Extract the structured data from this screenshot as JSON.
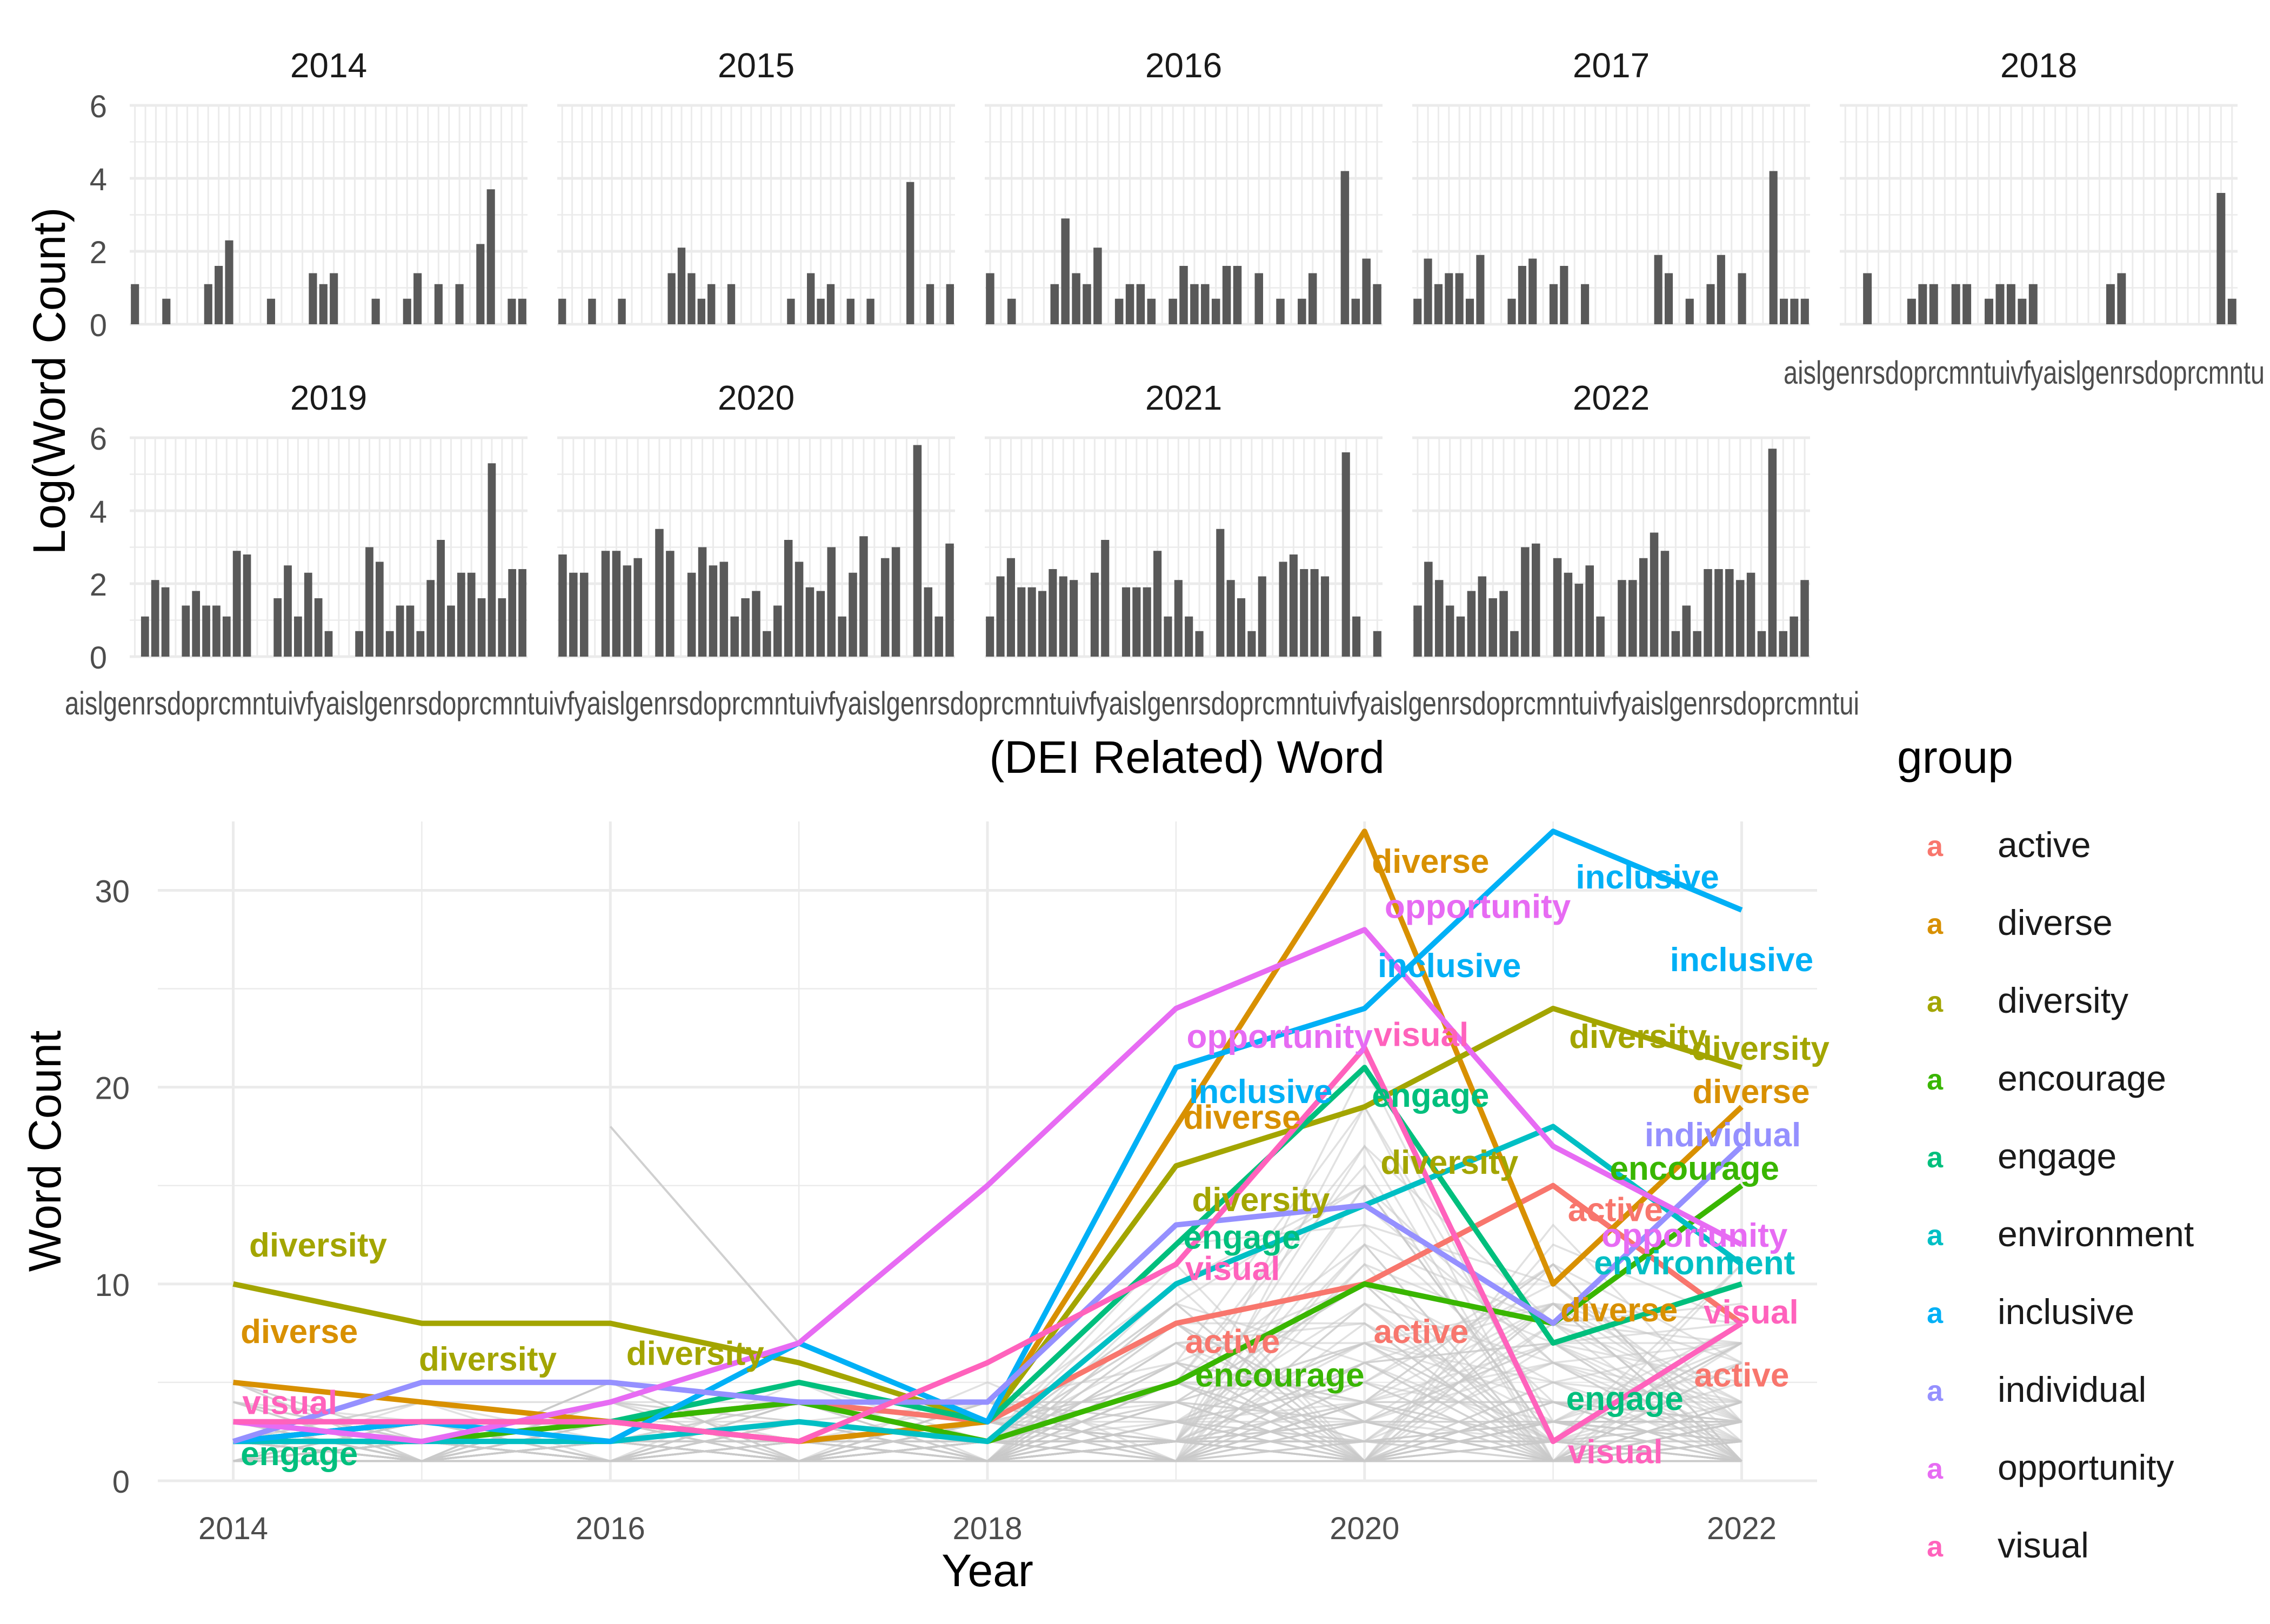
{
  "colors": {
    "background": "#ffffff",
    "panel_grid": "#ebebeb",
    "bar": "#595959",
    "axis_text": "#4d4d4d",
    "title_text": "#000000",
    "other_words_line": "#c8c8c8"
  },
  "chart_data": [
    {
      "type": "bar",
      "facet_by": "year",
      "facets": [
        {
          "year": "2014",
          "values": [
            1.1,
            0,
            0,
            0.7,
            0,
            0,
            0,
            1.1,
            1.6,
            2.3,
            0,
            0,
            0,
            0.7,
            0,
            0,
            0,
            1.4,
            1.1,
            1.4,
            0,
            0,
            0,
            0.7,
            0,
            0,
            0.7,
            1.4,
            0,
            1.1,
            0,
            1.1,
            0,
            2.2,
            3.7,
            0,
            0.7,
            0.7
          ]
        },
        {
          "year": "2015",
          "values": [
            0.7,
            0,
            0,
            0.7,
            0,
            0,
            0.7,
            0,
            0,
            0,
            0,
            1.4,
            2.1,
            1.4,
            0.7,
            1.1,
            0,
            1.1,
            0,
            0,
            0,
            0,
            0,
            0.7,
            0,
            1.4,
            0.7,
            1.1,
            0,
            0.7,
            0,
            0.7,
            0,
            0,
            0,
            3.9,
            0,
            1.1,
            0,
            1.1
          ]
        },
        {
          "year": "2016",
          "values": [
            1.4,
            0,
            0.7,
            0,
            0,
            0,
            1.1,
            2.9,
            1.4,
            1.1,
            2.1,
            0,
            0.7,
            1.1,
            1.1,
            0.7,
            0,
            0.7,
            1.6,
            1.1,
            1.1,
            0.7,
            1.6,
            1.6,
            0,
            1.4,
            0,
            0.7,
            0,
            0.7,
            1.4,
            0,
            0,
            4.2,
            0.7,
            1.8,
            1.1
          ]
        },
        {
          "year": "2017",
          "values": [
            0.7,
            1.8,
            1.1,
            1.4,
            1.4,
            0.7,
            1.9,
            0,
            0,
            0.7,
            1.6,
            1.8,
            0,
            1.1,
            1.6,
            0,
            1.1,
            0,
            0,
            0,
            0,
            0,
            0,
            1.9,
            1.4,
            0,
            0.7,
            0,
            1.1,
            1.9,
            0,
            1.4,
            0,
            0,
            4.2,
            0.7,
            0.7,
            0.7
          ]
        },
        {
          "year": "2018",
          "values": [
            0,
            0,
            1.4,
            0,
            0,
            0,
            0.7,
            1.1,
            1.1,
            0,
            1.1,
            1.1,
            0,
            0.7,
            1.1,
            1.1,
            0.7,
            1.1,
            0,
            0,
            0,
            0,
            0,
            0,
            1.1,
            1.4,
            0,
            0,
            0,
            0,
            0,
            0,
            0,
            0,
            3.6,
            0.7
          ]
        },
        {
          "year": "2019",
          "values": [
            0,
            1.1,
            2.1,
            1.9,
            0,
            1.4,
            1.8,
            1.4,
            1.4,
            1.1,
            2.9,
            2.8,
            0,
            0,
            1.6,
            2.5,
            1.1,
            2.3,
            1.6,
            0.7,
            0,
            0,
            0.7,
            3.0,
            2.6,
            0.7,
            1.4,
            1.4,
            0.7,
            2.1,
            3.2,
            1.4,
            2.3,
            2.3,
            1.6,
            5.3,
            1.6,
            2.4,
            2.4
          ]
        },
        {
          "year": "2020",
          "values": [
            2.8,
            2.3,
            2.3,
            0,
            2.9,
            2.9,
            2.5,
            2.7,
            0,
            3.5,
            2.9,
            0,
            2.3,
            3.0,
            2.5,
            2.6,
            1.1,
            1.6,
            1.8,
            0.7,
            1.4,
            3.2,
            2.6,
            1.9,
            1.8,
            3.0,
            1.1,
            2.3,
            3.3,
            0,
            2.7,
            3.0,
            0,
            5.8,
            1.9,
            1.1,
            3.1
          ]
        },
        {
          "year": "2021",
          "values": [
            1.1,
            2.2,
            2.7,
            1.9,
            1.9,
            1.8,
            2.4,
            2.2,
            2.1,
            0,
            2.3,
            3.2,
            0,
            1.9,
            1.9,
            1.9,
            2.9,
            1.1,
            2.1,
            1.1,
            0.7,
            0,
            3.5,
            2.1,
            1.6,
            0.7,
            2.2,
            0,
            2.6,
            2.8,
            2.4,
            2.4,
            2.2,
            0,
            5.6,
            1.1,
            0,
            0.7
          ]
        },
        {
          "year": "2022",
          "values": [
            1.4,
            2.6,
            2.1,
            1.4,
            1.1,
            1.8,
            2.2,
            1.6,
            1.8,
            0.7,
            3.0,
            3.1,
            0,
            2.7,
            2.3,
            2.0,
            2.5,
            1.1,
            0,
            2.1,
            2.1,
            2.7,
            3.4,
            2.9,
            0.7,
            1.4,
            0.7,
            2.4,
            2.4,
            2.4,
            2.1,
            2.3,
            0.7,
            5.7,
            0.7,
            1.1,
            2.1
          ]
        }
      ],
      "xlabel": "(DEI Related) Word",
      "ylabel": "Log(Word Count)",
      "ylim": [
        0,
        6
      ],
      "y_ticks": [
        "0",
        "2",
        "4",
        "6"
      ],
      "grid": true
    },
    {
      "type": "line",
      "x": [
        2014,
        2015,
        2016,
        2017,
        2018,
        2019,
        2020,
        2021,
        2022
      ],
      "x_ticks": [
        "2014",
        "2016",
        "2018",
        "2020",
        "2022"
      ],
      "y_ticks": [
        "0",
        "10",
        "20",
        "30"
      ],
      "ylim": [
        0,
        33.5
      ],
      "xlabel": "Year",
      "ylabel": "Word Count",
      "legend_title": "group",
      "legend_position": "right",
      "legend_key": "a",
      "series": [
        {
          "name": "active",
          "color": "#F8766D",
          "values": [
            2,
            3,
            3,
            4,
            3,
            8,
            10,
            15,
            8
          ]
        },
        {
          "name": "diverse",
          "color": "#D89000",
          "values": [
            5,
            4,
            3,
            2,
            3,
            18,
            33,
            10,
            19
          ]
        },
        {
          "name": "diversity",
          "color": "#A3A500",
          "values": [
            10,
            8,
            8,
            6,
            3,
            16,
            19,
            24,
            21
          ]
        },
        {
          "name": "encourage",
          "color": "#39B600",
          "values": [
            2,
            2,
            3,
            4,
            2,
            5,
            10,
            8,
            15
          ]
        },
        {
          "name": "engage",
          "color": "#00BF7D",
          "values": [
            2,
            3,
            3,
            5,
            3,
            12,
            21,
            7,
            10
          ]
        },
        {
          "name": "environment",
          "color": "#00BFC4",
          "values": [
            2,
            2,
            2,
            3,
            2,
            10,
            14,
            18,
            11
          ]
        },
        {
          "name": "inclusive",
          "color": "#00B0F6",
          "values": [
            2,
            3,
            2,
            7,
            3,
            21,
            24,
            33,
            29
          ]
        },
        {
          "name": "individual",
          "color": "#9590FF",
          "values": [
            2,
            5,
            5,
            4,
            4,
            13,
            14,
            8,
            17
          ]
        },
        {
          "name": "opportunity",
          "color": "#E76BF3",
          "values": [
            3,
            2,
            4,
            7,
            15,
            24,
            28,
            17,
            12
          ]
        },
        {
          "name": "visual",
          "color": "#FF62BC",
          "values": [
            3,
            3,
            3,
            2,
            6,
            11,
            22,
            2,
            8
          ]
        }
      ],
      "labels": [
        {
          "text": "diversity",
          "series": "diversity",
          "x": 2014.45,
          "y": 12
        },
        {
          "text": "diverse",
          "series": "diverse",
          "x": 2014.35,
          "y": 7.6
        },
        {
          "text": "visual",
          "series": "visual",
          "x": 2014.3,
          "y": 4.0
        },
        {
          "text": "engage",
          "series": "engage",
          "x": 2014.35,
          "y": 1.4
        },
        {
          "text": "diversity",
          "series": "diversity",
          "x": 2015.35,
          "y": 6.2
        },
        {
          "text": "diversity",
          "series": "diversity",
          "x": 2016.45,
          "y": 6.5
        },
        {
          "text": "diverse",
          "series": "diverse",
          "x": 2020.35,
          "y": 31.5
        },
        {
          "text": "opportunity",
          "series": "opportunity",
          "x": 2020.6,
          "y": 29.2
        },
        {
          "text": "inclusive",
          "series": "inclusive",
          "x": 2020.45,
          "y": 26.2
        },
        {
          "text": "visual",
          "series": "visual",
          "x": 2020.3,
          "y": 22.7
        },
        {
          "text": "engage",
          "series": "engage",
          "x": 2020.35,
          "y": 19.6
        },
        {
          "text": "diversity",
          "series": "diversity",
          "x": 2020.45,
          "y": 16.2
        },
        {
          "text": "opportunity",
          "series": "opportunity",
          "x": 2019.55,
          "y": 22.6
        },
        {
          "text": "inclusive",
          "series": "inclusive",
          "x": 2019.45,
          "y": 19.8
        },
        {
          "text": "diverse",
          "series": "diverse",
          "x": 2019.35,
          "y": 18.5
        },
        {
          "text": "diversity",
          "series": "diversity",
          "x": 2019.45,
          "y": 14.3
        },
        {
          "text": "engage",
          "series": "engage",
          "x": 2019.35,
          "y": 12.4
        },
        {
          "text": "visual",
          "series": "visual",
          "x": 2019.3,
          "y": 10.8
        },
        {
          "text": "active",
          "series": "active",
          "x": 2019.3,
          "y": 7.1
        },
        {
          "text": "encourage",
          "series": "encourage",
          "x": 2019.55,
          "y": 5.4
        },
        {
          "text": "active",
          "series": "active",
          "x": 2020.3,
          "y": 7.6
        },
        {
          "text": "inclusive",
          "series": "inclusive",
          "x": 2021.5,
          "y": 30.7
        },
        {
          "text": "inclusive",
          "series": "inclusive",
          "x": 2022.0,
          "y": 26.5
        },
        {
          "text": "diversity",
          "series": "diversity",
          "x": 2021.45,
          "y": 22.6
        },
        {
          "text": "diversity",
          "series": "diversity",
          "x": 2022.1,
          "y": 22.0
        },
        {
          "text": "diverse",
          "series": "diverse",
          "x": 2022.05,
          "y": 19.8
        },
        {
          "text": "individual",
          "series": "individual",
          "x": 2021.9,
          "y": 17.6
        },
        {
          "text": "encourage",
          "series": "encourage",
          "x": 2021.75,
          "y": 15.9
        },
        {
          "text": "active",
          "series": "active",
          "x": 2021.33,
          "y": 13.8
        },
        {
          "text": "opportunity",
          "series": "opportunity",
          "x": 2021.75,
          "y": 12.5
        },
        {
          "text": "environment",
          "series": "environment",
          "x": 2021.75,
          "y": 11.1
        },
        {
          "text": "diverse",
          "series": "diverse",
          "x": 2021.35,
          "y": 8.7
        },
        {
          "text": "visual",
          "series": "visual",
          "x": 2022.05,
          "y": 8.6
        },
        {
          "text": "active",
          "series": "active",
          "x": 2022.0,
          "y": 5.4
        },
        {
          "text": "engage",
          "series": "engage",
          "x": 2021.38,
          "y": 4.2
        },
        {
          "text": "visual",
          "series": "visual",
          "x": 2021.33,
          "y": 1.5
        }
      ]
    }
  ]
}
